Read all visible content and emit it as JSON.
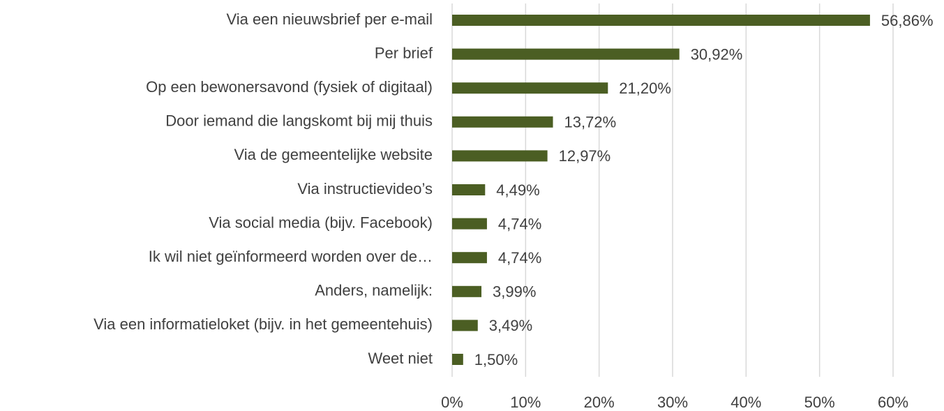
{
  "chart_data": {
    "type": "barh",
    "categories": [
      "Via een nieuwsbrief per e-mail",
      "Per brief",
      "Op een bewonersavond (fysiek of digitaal)",
      "Door iemand die langskomt bij mij thuis",
      "Via de gemeentelijke website",
      "Via instructievideo’s",
      "Via social media (bijv. Facebook)",
      "Ik wil niet geïnformeerd worden over de…",
      "Anders, namelijk:",
      "Via een informatieloket (bijv. in het gemeentehuis)",
      "Weet niet"
    ],
    "values": [
      56.86,
      30.92,
      21.2,
      13.72,
      12.97,
      4.49,
      4.74,
      4.74,
      3.99,
      3.49,
      1.5
    ],
    "value_labels": [
      "56,86%",
      "30,92%",
      "21,20%",
      "13,72%",
      "12,97%",
      "4,49%",
      "4,74%",
      "4,74%",
      "3,99%",
      "3,49%",
      "1,50%"
    ],
    "color": "#4b5e23",
    "xlim": [
      0,
      60
    ],
    "xticks": [
      {
        "value": 0,
        "label": "0%"
      },
      {
        "value": 10,
        "label": "10%"
      },
      {
        "value": 20,
        "label": "20%"
      },
      {
        "value": 30,
        "label": "30%"
      },
      {
        "value": 40,
        "label": "40%"
      },
      {
        "value": 50,
        "label": "50%"
      },
      {
        "value": 60,
        "label": "60%"
      }
    ],
    "grid": true
  }
}
